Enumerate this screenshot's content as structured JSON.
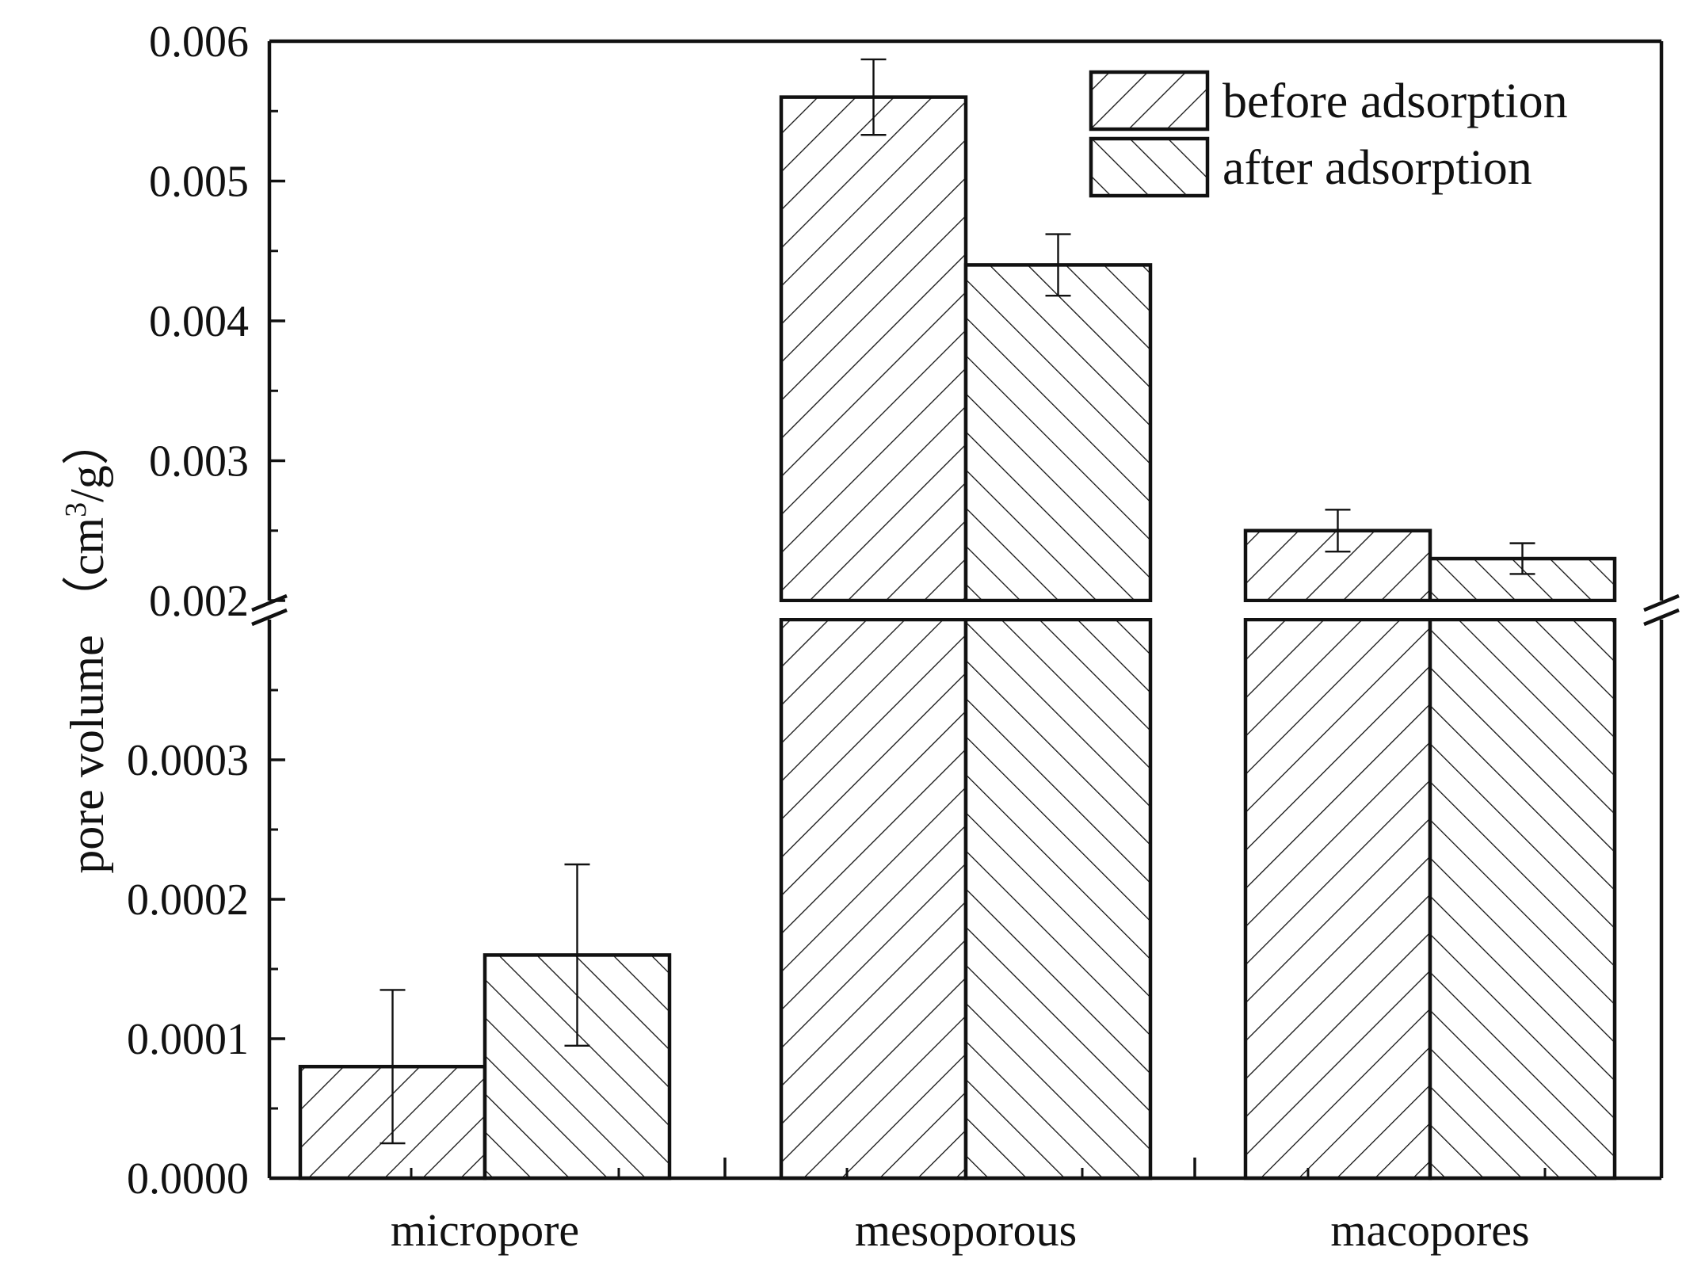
{
  "chart_data": {
    "type": "bar",
    "title": "",
    "xlabel": "",
    "ylabel": "pore volume （cm",
    "ylabel_sup": "3",
    "ylabel_tail": "/g）",
    "categories": [
      "micropore",
      "mesoporous",
      "macopores"
    ],
    "series": [
      {
        "name": "before adsorption",
        "pattern": "forward-hatch",
        "values": [
          8e-05,
          0.0056,
          0.0025
        ],
        "error": [
          5.5e-05,
          0.00027,
          0.00015
        ]
      },
      {
        "name": "after adsorption",
        "pattern": "back-hatch",
        "values": [
          0.00016,
          0.0044,
          0.0023
        ],
        "error": [
          6.5e-05,
          0.00022,
          0.00011
        ]
      }
    ],
    "y_axis_break": {
      "lower": {
        "ylim": [
          0,
          0.0004
        ],
        "ticks": [
          "0.0000",
          "0.0001",
          "0.0002",
          "0.0003"
        ],
        "tick_values": [
          0,
          0.0001,
          0.0002,
          0.0003
        ]
      },
      "upper": {
        "ylim": [
          0.002,
          0.006
        ],
        "ticks": [
          "0.002",
          "0.003",
          "0.004",
          "0.005",
          "0.006"
        ],
        "tick_values": [
          0.002,
          0.003,
          0.004,
          0.005,
          0.006
        ]
      }
    },
    "legend_position": "top-right",
    "grid": false,
    "colors": {
      "stroke": "#111111",
      "fill": "#ffffff"
    }
  }
}
